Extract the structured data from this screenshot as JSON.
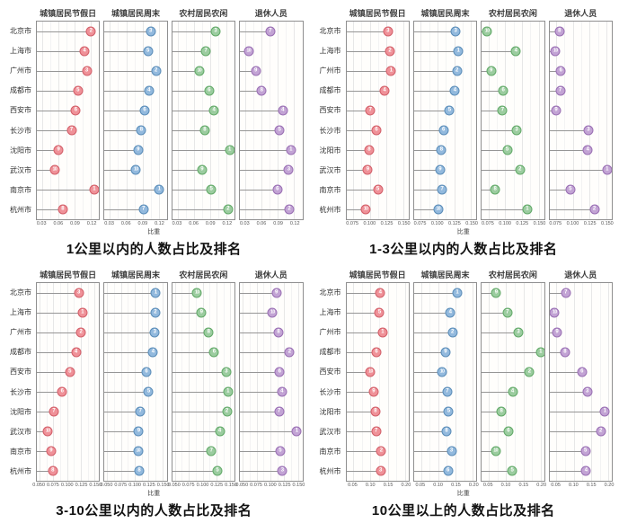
{
  "xlabel": "比重",
  "cities": [
    "北京市",
    "上海市",
    "广州市",
    "成都市",
    "西安市",
    "长沙市",
    "沈阳市",
    "武汉市",
    "南京市",
    "杭州市"
  ],
  "group_labels": [
    "城镇居民节假日",
    "城镇居民周末",
    "农村居民农闲",
    "退休人员"
  ],
  "palette": {
    "holiday_fill": "#ef9198",
    "holiday_stroke": "#d25f69",
    "weekend_fill": "#92b9dd",
    "weekend_stroke": "#5b8db8",
    "rural_fill": "#9bcc9f",
    "rural_stroke": "#62a968",
    "retired_fill": "#c2a3d4",
    "retired_stroke": "#996fb3"
  },
  "chart_data": [
    {
      "type": "scatter",
      "subtype": "lollipop-rank",
      "title": "1公里以内的人数占比及排名",
      "xlabel": "比重",
      "categories": [
        "北京市",
        "上海市",
        "广州市",
        "成都市",
        "西安市",
        "长沙市",
        "沈阳市",
        "武汉市",
        "南京市",
        "杭州市"
      ],
      "panels": [
        {
          "label": "城镇居民节假日",
          "fill": "#ef9198",
          "stroke": "#d25f69",
          "ticks": [
            0.03,
            0.06,
            0.09,
            0.12
          ],
          "tick_labels": [
            "0.03",
            "0.06",
            "0.09",
            "0.12"
          ],
          "xlim": [
            0.02,
            0.135
          ],
          "values": [
            0.12,
            0.108,
            0.112,
            0.096,
            0.092,
            0.084,
            0.06,
            0.053,
            0.126,
            0.068
          ],
          "ranks": [
            2,
            4,
            3,
            5,
            6,
            7,
            9,
            10,
            1,
            8
          ]
        },
        {
          "label": "城镇居民周末",
          "fill": "#92b9dd",
          "stroke": "#5b8db8",
          "ticks": [
            0.03,
            0.06,
            0.09,
            0.12
          ],
          "tick_labels": [
            "0.03",
            "0.06",
            "0.09",
            "0.12"
          ],
          "xlim": [
            0.02,
            0.135
          ],
          "values": [
            0.105,
            0.1,
            0.115,
            0.102,
            0.094,
            0.088,
            0.082,
            0.078,
            0.121,
            0.092
          ],
          "ranks": [
            3,
            5,
            2,
            4,
            6,
            8,
            9,
            10,
            1,
            7
          ]
        },
        {
          "label": "农村居民农闲",
          "fill": "#9bcc9f",
          "stroke": "#62a968",
          "ticks": [
            0.03,
            0.06,
            0.09,
            0.12
          ],
          "tick_labels": [
            "0.03",
            "0.06",
            "0.09",
            "0.12"
          ],
          "xlim": [
            0.02,
            0.135
          ],
          "values": [
            0.1,
            0.082,
            0.07,
            0.088,
            0.097,
            0.08,
            0.126,
            0.075,
            0.092,
            0.123
          ],
          "ranks": [
            3,
            7,
            10,
            6,
            4,
            8,
            1,
            9,
            5,
            2
          ]
        },
        {
          "label": "退休人员",
          "fill": "#c2a3d4",
          "stroke": "#996fb3",
          "ticks": [
            0.03,
            0.06,
            0.09,
            0.12
          ],
          "tick_labels": [
            "0.03",
            "0.06",
            "0.09",
            "0.12"
          ],
          "xlim": [
            0.02,
            0.135
          ],
          "values": [
            0.076,
            0.036,
            0.049,
            0.06,
            0.099,
            0.093,
            0.114,
            0.11,
            0.089,
            0.111
          ],
          "ranks": [
            7,
            10,
            9,
            8,
            4,
            5,
            1,
            3,
            6,
            2
          ]
        }
      ]
    },
    {
      "type": "scatter",
      "subtype": "lollipop-rank",
      "title": "1-3公里以内的人数占比及排名",
      "xlabel": "比重",
      "categories": [
        "北京市",
        "上海市",
        "广州市",
        "成都市",
        "西安市",
        "长沙市",
        "沈阳市",
        "武汉市",
        "南京市",
        "杭州市"
      ],
      "panels": [
        {
          "label": "城镇居民节假日",
          "fill": "#ef9198",
          "stroke": "#d25f69",
          "ticks": [
            0.075,
            0.1,
            0.125,
            0.15
          ],
          "tick_labels": [
            "0.075",
            "0.100",
            "0.125",
            "0.150"
          ],
          "xlim": [
            0.065,
            0.158
          ],
          "values": [
            0.127,
            0.13,
            0.132,
            0.122,
            0.101,
            0.11,
            0.099,
            0.097,
            0.112,
            0.094
          ],
          "ranks": [
            3,
            2,
            1,
            4,
            7,
            6,
            8,
            9,
            5,
            10
          ]
        },
        {
          "label": "城镇居民周末",
          "fill": "#92b9dd",
          "stroke": "#5b8db8",
          "ticks": [
            0.075,
            0.1,
            0.125,
            0.15
          ],
          "tick_labels": [
            "0.075",
            "0.100",
            "0.125",
            "0.150"
          ],
          "xlim": [
            0.065,
            0.158
          ],
          "values": [
            0.127,
            0.131,
            0.129,
            0.126,
            0.118,
            0.109,
            0.106,
            0.104,
            0.107,
            0.101
          ],
          "ranks": [
            3,
            1,
            2,
            4,
            5,
            6,
            8,
            9,
            7,
            10
          ]
        },
        {
          "label": "农村居民农闲",
          "fill": "#9bcc9f",
          "stroke": "#62a968",
          "ticks": [
            0.075,
            0.1,
            0.125,
            0.15
          ],
          "tick_labels": [
            "0.075",
            "0.100",
            "0.125",
            "0.150"
          ],
          "xlim": [
            0.065,
            0.158
          ],
          "values": [
            0.073,
            0.116,
            0.079,
            0.097,
            0.096,
            0.117,
            0.103,
            0.122,
            0.085,
            0.133
          ],
          "ranks": [
            10,
            4,
            9,
            6,
            7,
            3,
            5,
            2,
            8,
            1
          ]
        },
        {
          "label": "退休人员",
          "fill": "#c2a3d4",
          "stroke": "#996fb3",
          "ticks": [
            0.075,
            0.1,
            0.125,
            0.15
          ],
          "tick_labels": [
            "0.075",
            "0.100",
            "0.125",
            "0.150"
          ],
          "xlim": [
            0.065,
            0.158
          ],
          "values": [
            0.08,
            0.074,
            0.082,
            0.081,
            0.075,
            0.123,
            0.122,
            0.151,
            0.096,
            0.132
          ],
          "ranks": [
            8,
            10,
            6,
            7,
            9,
            3,
            4,
            1,
            5,
            2
          ]
        }
      ]
    },
    {
      "type": "scatter",
      "subtype": "lollipop-rank",
      "title": "3-10公里以内的人数占比及排名",
      "xlabel": "比重",
      "categories": [
        "北京市",
        "上海市",
        "广州市",
        "成都市",
        "西安市",
        "长沙市",
        "沈阳市",
        "武汉市",
        "南京市",
        "杭州市"
      ],
      "panels": [
        {
          "label": "城镇居民节假日",
          "fill": "#ef9198",
          "stroke": "#d25f69",
          "ticks": [
            0.05,
            0.075,
            0.1,
            0.125,
            0.15
          ],
          "tick_labels": [
            "0.050",
            "0.075",
            "0.100",
            "0.125",
            "0.150"
          ],
          "xlim": [
            0.045,
            0.158
          ],
          "values": [
            0.121,
            0.128,
            0.125,
            0.116,
            0.105,
            0.091,
            0.076,
            0.065,
            0.071,
            0.074
          ],
          "ranks": [
            3,
            1,
            2,
            4,
            5,
            6,
            7,
            10,
            9,
            8
          ]
        },
        {
          "label": "城镇居民周末",
          "fill": "#92b9dd",
          "stroke": "#5b8db8",
          "ticks": [
            0.05,
            0.075,
            0.1,
            0.125,
            0.15
          ],
          "tick_labels": [
            "0.050",
            "0.075",
            "0.100",
            "0.125",
            "0.150"
          ],
          "xlim": [
            0.045,
            0.158
          ],
          "values": [
            0.138,
            0.137,
            0.136,
            0.133,
            0.121,
            0.125,
            0.11,
            0.107,
            0.106,
            0.108
          ],
          "ranks": [
            1,
            2,
            3,
            4,
            6,
            5,
            7,
            9,
            10,
            8
          ]
        },
        {
          "label": "农村居民农闲",
          "fill": "#9bcc9f",
          "stroke": "#62a968",
          "ticks": [
            0.05,
            0.075,
            0.1,
            0.125,
            0.15
          ],
          "tick_labels": [
            "0.050",
            "0.075",
            "0.100",
            "0.125",
            "0.150"
          ],
          "xlim": [
            0.045,
            0.158
          ],
          "values": [
            0.09,
            0.098,
            0.111,
            0.121,
            0.143,
            0.146,
            0.144,
            0.131,
            0.116,
            0.127
          ],
          "ranks": [
            10,
            9,
            8,
            6,
            3,
            1,
            2,
            4,
            7,
            5
          ]
        },
        {
          "label": "退休人员",
          "fill": "#c2a3d4",
          "stroke": "#996fb3",
          "ticks": [
            0.05,
            0.075,
            0.1,
            0.125,
            0.15
          ],
          "tick_labels": [
            "0.050",
            "0.075",
            "0.100",
            "0.125",
            "0.150"
          ],
          "xlim": [
            0.045,
            0.158
          ],
          "values": [
            0.111,
            0.104,
            0.115,
            0.135,
            0.117,
            0.121,
            0.116,
            0.148,
            0.118,
            0.122
          ],
          "ranks": [
            9,
            10,
            8,
            2,
            6,
            4,
            7,
            1,
            5,
            3
          ]
        }
      ]
    },
    {
      "type": "scatter",
      "subtype": "lollipop-rank",
      "title": "10公里以上的人数占比及排名",
      "xlabel": "比重",
      "categories": [
        "北京市",
        "上海市",
        "广州市",
        "成都市",
        "西安市",
        "长沙市",
        "沈阳市",
        "武汉市",
        "南京市",
        "杭州市"
      ],
      "panels": [
        {
          "label": "城镇居民节假日",
          "fill": "#ef9198",
          "stroke": "#d25f69",
          "ticks": [
            0.05,
            0.1,
            0.15,
            0.2
          ],
          "tick_labels": [
            "0.05",
            "0.10",
            "0.15",
            "0.20"
          ],
          "xlim": [
            0.03,
            0.21
          ],
          "values": [
            0.128,
            0.126,
            0.135,
            0.117,
            0.1,
            0.109,
            0.114,
            0.116,
            0.131,
            0.129
          ],
          "ranks": [
            4,
            5,
            1,
            6,
            10,
            9,
            8,
            7,
            2,
            3
          ]
        },
        {
          "label": "城镇居民周末",
          "fill": "#92b9dd",
          "stroke": "#5b8db8",
          "ticks": [
            0.05,
            0.1,
            0.15,
            0.2
          ],
          "tick_labels": [
            "0.05",
            "0.10",
            "0.15",
            "0.20"
          ],
          "xlim": [
            0.03,
            0.21
          ],
          "values": [
            0.155,
            0.135,
            0.141,
            0.121,
            0.111,
            0.126,
            0.13,
            0.124,
            0.138,
            0.128
          ],
          "ranks": [
            1,
            4,
            2,
            9,
            10,
            7,
            5,
            8,
            3,
            6
          ]
        },
        {
          "label": "农村居民农闲",
          "fill": "#9bcc9f",
          "stroke": "#62a968",
          "ticks": [
            0.05,
            0.1,
            0.15,
            0.2
          ],
          "tick_labels": [
            "0.05",
            "0.10",
            "0.15",
            "0.20"
          ],
          "xlim": [
            0.03,
            0.21
          ],
          "values": [
            0.072,
            0.104,
            0.136,
            0.2,
            0.168,
            0.119,
            0.087,
            0.107,
            0.07,
            0.118
          ],
          "ranks": [
            9,
            7,
            3,
            1,
            2,
            4,
            8,
            6,
            10,
            5
          ]
        },
        {
          "label": "退休人员",
          "fill": "#c2a3d4",
          "stroke": "#996fb3",
          "ticks": [
            0.05,
            0.1,
            0.15,
            0.2
          ],
          "tick_labels": [
            "0.05",
            "0.10",
            "0.15",
            "0.20"
          ],
          "xlim": [
            0.03,
            0.21
          ],
          "values": [
            0.077,
            0.045,
            0.052,
            0.075,
            0.124,
            0.139,
            0.19,
            0.178,
            0.134,
            0.136
          ],
          "ranks": [
            7,
            10,
            9,
            8,
            6,
            3,
            1,
            2,
            5,
            4
          ]
        }
      ]
    }
  ]
}
